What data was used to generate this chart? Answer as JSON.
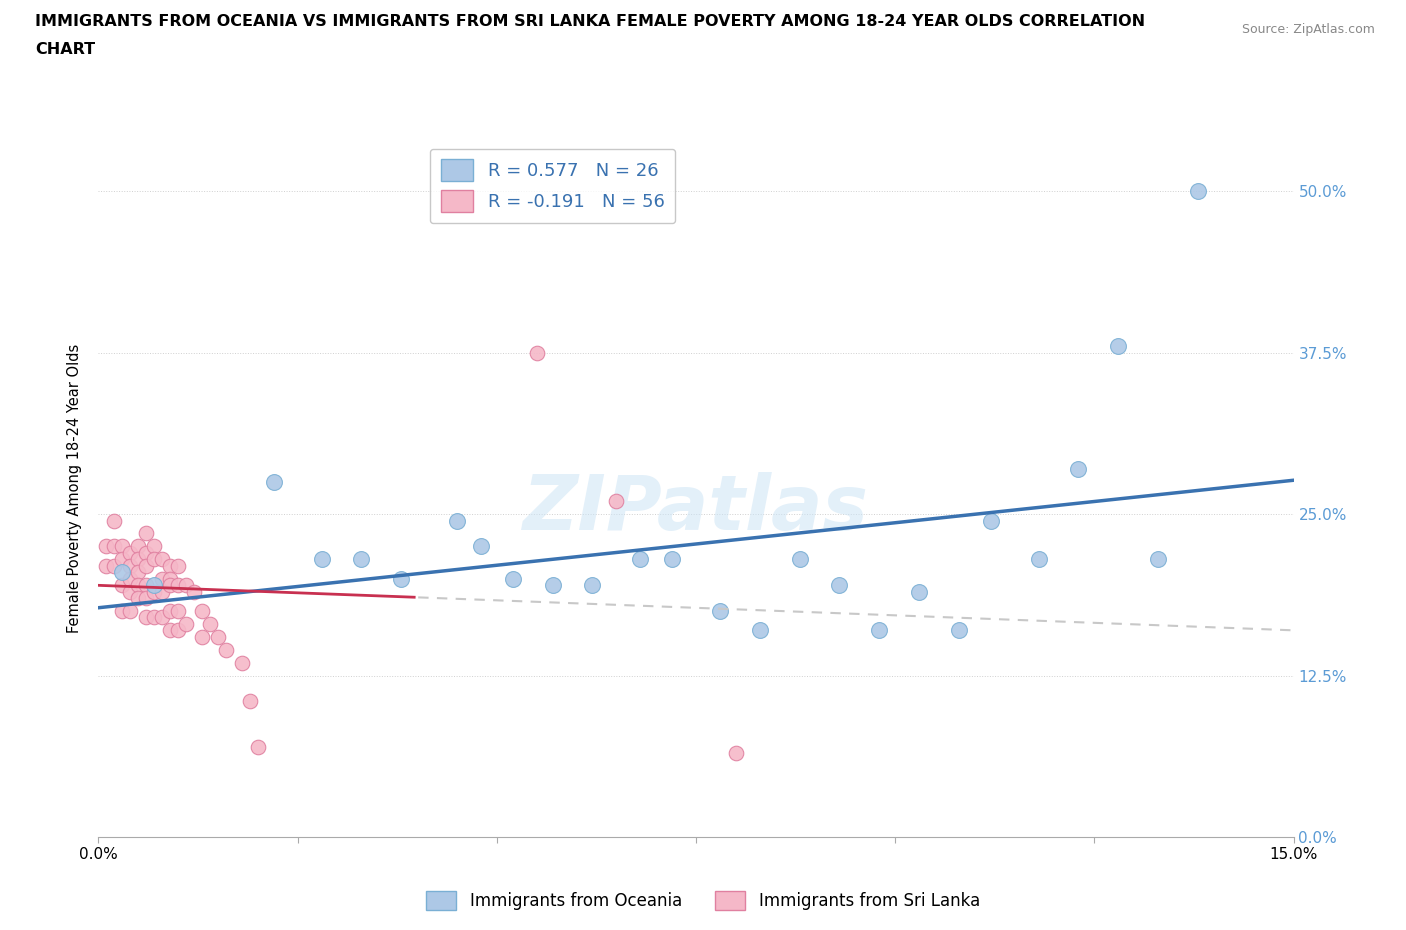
{
  "title_line1": "IMMIGRANTS FROM OCEANIA VS IMMIGRANTS FROM SRI LANKA FEMALE POVERTY AMONG 18-24 YEAR OLDS CORRELATION",
  "title_line2": "CHART",
  "source": "Source: ZipAtlas.com",
  "ylabel": "Female Poverty Among 18-24 Year Olds",
  "xlim": [
    0.0,
    0.15
  ],
  "ylim": [
    0.0,
    0.54
  ],
  "yticks": [
    0.0,
    0.125,
    0.25,
    0.375,
    0.5
  ],
  "ytick_labels": [
    "0.0%",
    "12.5%",
    "25.0%",
    "37.5%",
    "50.0%"
  ],
  "xtick_positions": [
    0.0,
    0.025,
    0.05,
    0.075,
    0.1,
    0.125,
    0.15
  ],
  "xtick_labels": [
    "0.0%",
    "",
    "",
    "",
    "",
    "",
    "15.0%"
  ],
  "oceania_color": "#adc8e6",
  "oceania_edge": "#7aafd4",
  "srilanka_color": "#f5b8c8",
  "srilanka_edge": "#e080a0",
  "trendline_oceania_color": "#3a72b0",
  "trendline_srilanka_solid_color": "#c83050",
  "trendline_srilanka_dashed_color": "#c8c8c8",
  "watermark": "ZIPatlas",
  "legend_oceania_label": "R = 0.577   N = 26",
  "legend_srilanka_label": "R = -0.191   N = 56",
  "bottom_legend_oceania": "Immigrants from Oceania",
  "bottom_legend_srilanka": "Immigrants from Sri Lanka",
  "oceania_x": [
    0.003,
    0.007,
    0.022,
    0.028,
    0.033,
    0.038,
    0.045,
    0.048,
    0.052,
    0.057,
    0.062,
    0.068,
    0.072,
    0.078,
    0.083,
    0.088,
    0.093,
    0.098,
    0.103,
    0.108,
    0.112,
    0.118,
    0.123,
    0.128,
    0.133,
    0.138
  ],
  "oceania_y": [
    0.205,
    0.195,
    0.275,
    0.215,
    0.215,
    0.2,
    0.245,
    0.225,
    0.2,
    0.195,
    0.195,
    0.215,
    0.215,
    0.175,
    0.16,
    0.215,
    0.195,
    0.16,
    0.19,
    0.16,
    0.245,
    0.215,
    0.285,
    0.38,
    0.215,
    0.5
  ],
  "srilanka_x": [
    0.001,
    0.001,
    0.002,
    0.002,
    0.002,
    0.003,
    0.003,
    0.003,
    0.003,
    0.004,
    0.004,
    0.004,
    0.004,
    0.004,
    0.005,
    0.005,
    0.005,
    0.005,
    0.005,
    0.006,
    0.006,
    0.006,
    0.006,
    0.006,
    0.006,
    0.007,
    0.007,
    0.007,
    0.007,
    0.008,
    0.008,
    0.008,
    0.008,
    0.009,
    0.009,
    0.009,
    0.009,
    0.009,
    0.01,
    0.01,
    0.01,
    0.01,
    0.011,
    0.011,
    0.012,
    0.013,
    0.013,
    0.014,
    0.015,
    0.016,
    0.018,
    0.019,
    0.02,
    0.055,
    0.065,
    0.08
  ],
  "srilanka_y": [
    0.225,
    0.21,
    0.245,
    0.225,
    0.21,
    0.225,
    0.215,
    0.195,
    0.175,
    0.22,
    0.21,
    0.2,
    0.19,
    0.175,
    0.225,
    0.215,
    0.205,
    0.195,
    0.185,
    0.235,
    0.22,
    0.21,
    0.195,
    0.185,
    0.17,
    0.225,
    0.215,
    0.19,
    0.17,
    0.215,
    0.2,
    0.19,
    0.17,
    0.21,
    0.2,
    0.195,
    0.175,
    0.16,
    0.21,
    0.195,
    0.175,
    0.16,
    0.195,
    0.165,
    0.19,
    0.175,
    0.155,
    0.165,
    0.155,
    0.145,
    0.135,
    0.105,
    0.07,
    0.375,
    0.26,
    0.065
  ],
  "trendline_srilanka_solid_end": 0.04,
  "oceania_scatter_size": 130,
  "srilanka_scatter_size": 110
}
